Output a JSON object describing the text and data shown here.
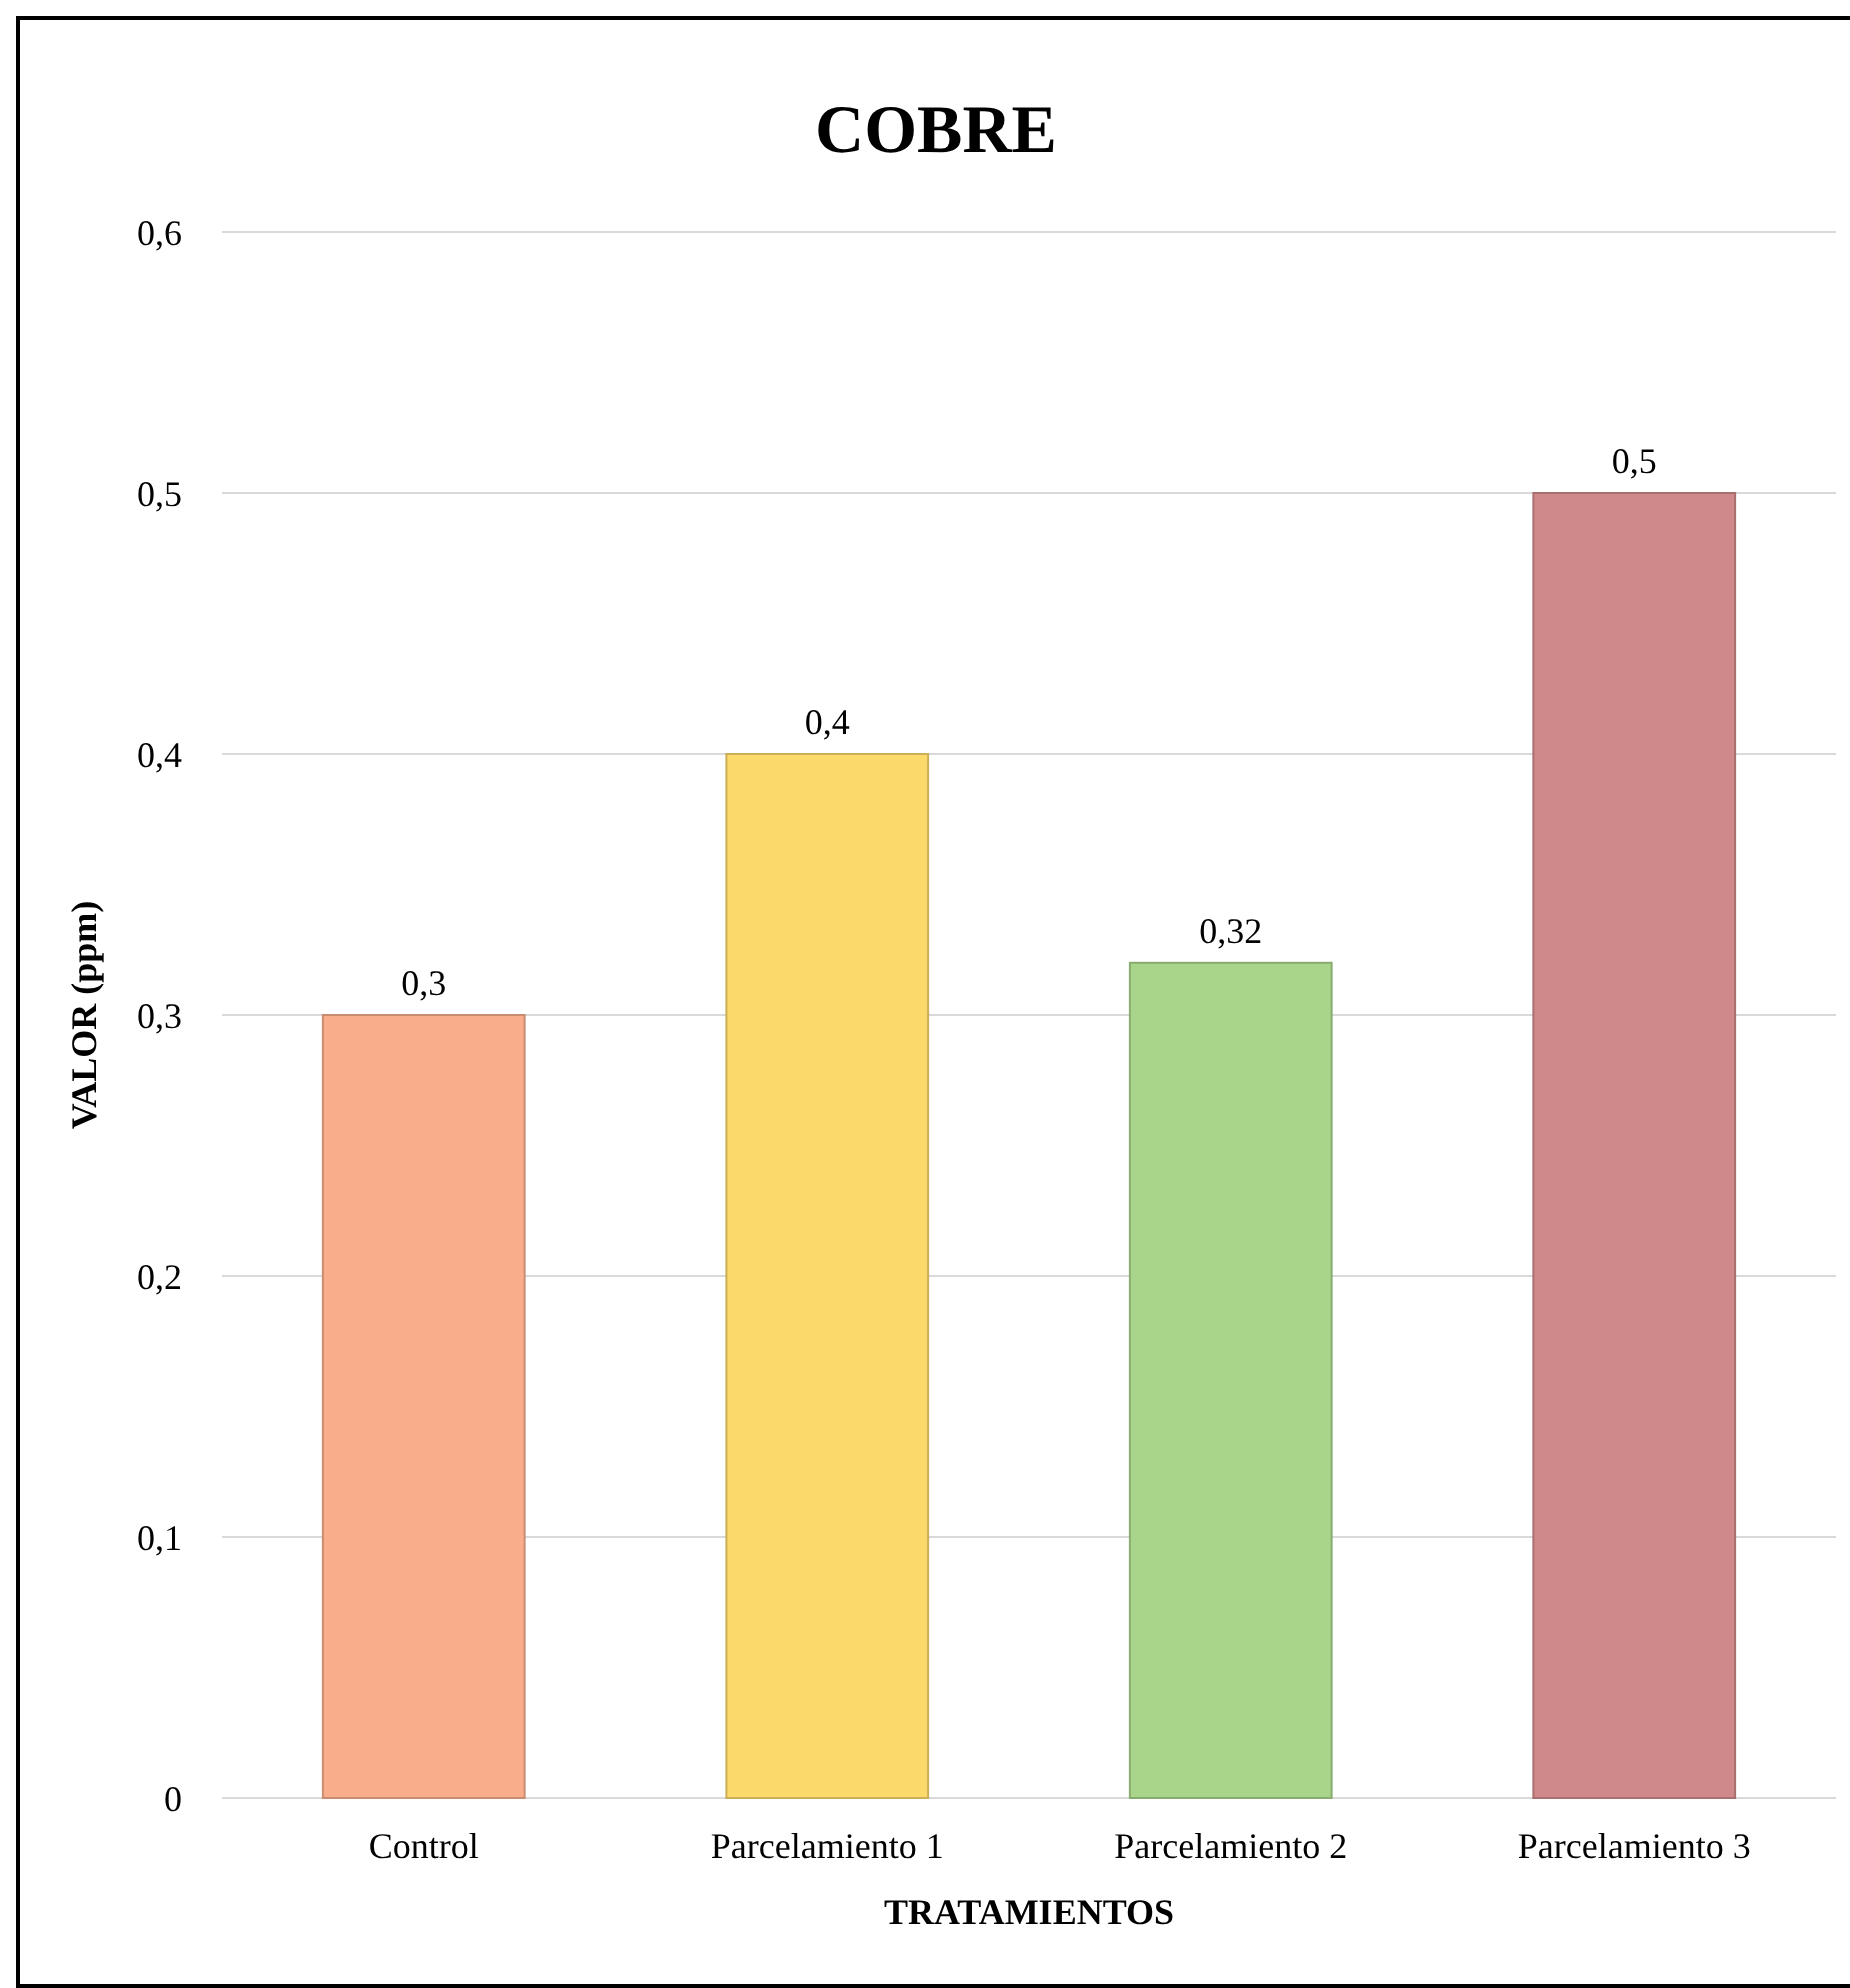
{
  "chart_data": {
    "type": "bar",
    "title": "COBRE",
    "xlabel": "TRATAMIENTOS",
    "ylabel": "VALOR (ppm)",
    "categories": [
      "Control",
      "Parcelamiento 1",
      "Parcelamiento 2",
      "Parcelamiento 3"
    ],
    "values": [
      0.3,
      0.4,
      0.32,
      0.5
    ],
    "colors": [
      "#f9ad8b",
      "#fbd96a",
      "#a8d58a",
      "#d0898a"
    ],
    "value_labels": [
      "0,3",
      "0,4",
      "0,32",
      "0,5"
    ],
    "ylim": [
      0,
      0.6
    ],
    "yticks": [
      {
        "value": 0,
        "label": "0"
      },
      {
        "value": 0.1,
        "label": "0,1"
      },
      {
        "value": 0.2,
        "label": "0,2"
      },
      {
        "value": 0.3,
        "label": "0,3"
      },
      {
        "value": 0.4,
        "label": "0,4"
      },
      {
        "value": 0.5,
        "label": "0,5"
      },
      {
        "value": 0.6,
        "label": "0,6"
      }
    ],
    "grid": "y"
  }
}
